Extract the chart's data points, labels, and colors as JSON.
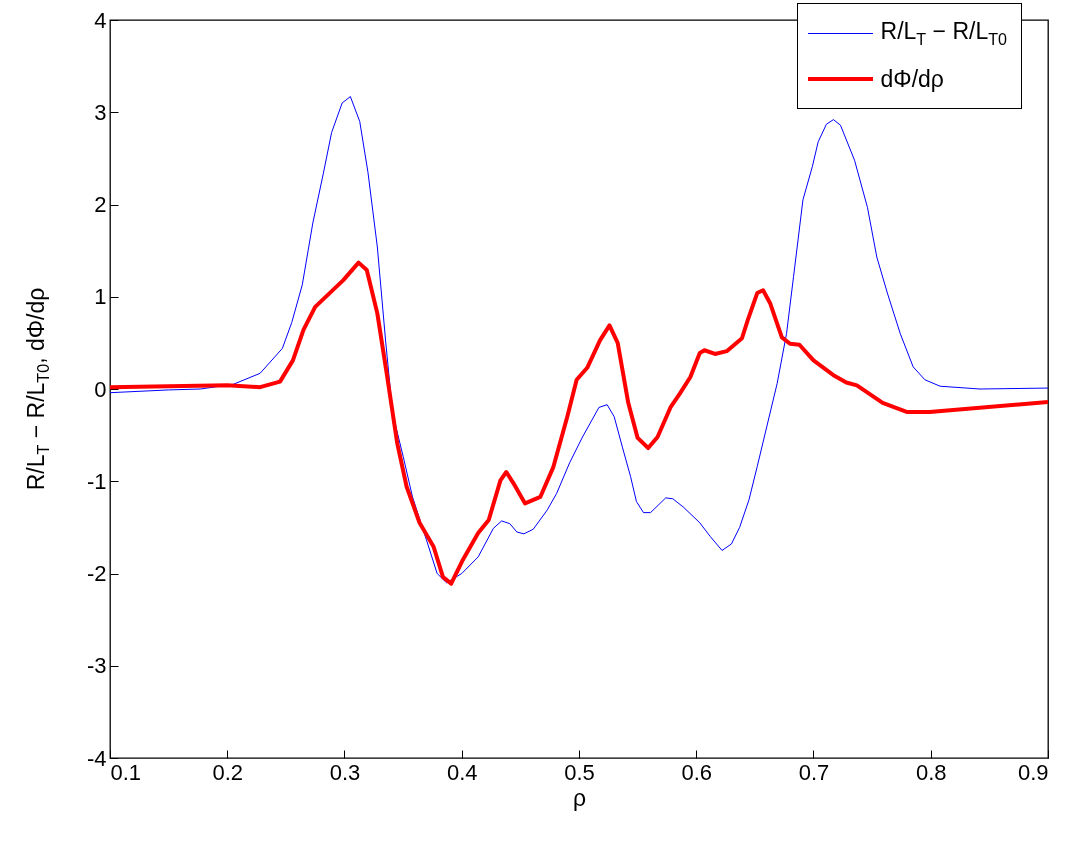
{
  "chart_data": {
    "type": "line",
    "xlabel": "ρ",
    "ylabel": "R/L$_{T}$ − R/L$_{T0}$, dΦ/dρ",
    "xlim": [
      0.1,
      0.9
    ],
    "ylim": [
      -4,
      4
    ],
    "xticks": [
      0.1,
      0.2,
      0.3,
      0.4,
      0.5,
      0.6,
      0.7,
      0.8,
      0.9
    ],
    "yticks": [
      -4,
      -3,
      -2,
      -1,
      0,
      1,
      2,
      3,
      4
    ],
    "grid": false,
    "legend": "top right",
    "marker": "none",
    "series": [
      {
        "name": "R/L$_{T}$ − R/L$_{T0}$",
        "color": "#0000ff",
        "line_style": "solid",
        "x": [
          0.1,
          0.15,
          0.177,
          0.205,
          0.228,
          0.247,
          0.255,
          0.264,
          0.273,
          0.282,
          0.289,
          0.298,
          0.305,
          0.313,
          0.32,
          0.328,
          0.335,
          0.341,
          0.35,
          0.358,
          0.37,
          0.379,
          0.387,
          0.4,
          0.414,
          0.427,
          0.434,
          0.441,
          0.447,
          0.453,
          0.461,
          0.473,
          0.481,
          0.492,
          0.503,
          0.517,
          0.524,
          0.53,
          0.537,
          0.544,
          0.549,
          0.555,
          0.561,
          0.574,
          0.58,
          0.589,
          0.603,
          0.612,
          0.622,
          0.63,
          0.637,
          0.645,
          0.652,
          0.669,
          0.677,
          0.683,
          0.691,
          0.699,
          0.704,
          0.711,
          0.717,
          0.723,
          0.735,
          0.746,
          0.754,
          0.763,
          0.774,
          0.785,
          0.795,
          0.808,
          0.842,
          0.9
        ],
        "values": [
          -0.04,
          -0.01,
          0.0,
          0.05,
          0.17,
          0.44,
          0.72,
          1.13,
          1.8,
          2.34,
          2.78,
          3.1,
          3.17,
          2.9,
          2.35,
          1.54,
          0.53,
          -0.26,
          -0.73,
          -1.17,
          -1.64,
          -2.0,
          -2.1,
          -2.0,
          -1.82,
          -1.51,
          -1.43,
          -1.46,
          -1.55,
          -1.57,
          -1.52,
          -1.31,
          -1.13,
          -0.8,
          -0.52,
          -0.2,
          -0.17,
          -0.3,
          -0.63,
          -0.95,
          -1.22,
          -1.34,
          -1.34,
          -1.18,
          -1.19,
          -1.28,
          -1.45,
          -1.6,
          -1.75,
          -1.68,
          -1.5,
          -1.2,
          -0.84,
          0.06,
          0.6,
          1.22,
          2.05,
          2.41,
          2.68,
          2.87,
          2.92,
          2.86,
          2.48,
          1.97,
          1.43,
          1.04,
          0.6,
          0.24,
          0.1,
          0.03,
          0.0,
          0.01
        ]
      },
      {
        "name": "dΦ/dρ",
        "color": "#ff0000",
        "line_style": "solid",
        "x": [
          0.1,
          0.2,
          0.228,
          0.245,
          0.256,
          0.265,
          0.275,
          0.299,
          0.312,
          0.319,
          0.328,
          0.336,
          0.345,
          0.353,
          0.364,
          0.376,
          0.384,
          0.391,
          0.401,
          0.414,
          0.423,
          0.433,
          0.438,
          0.444,
          0.454,
          0.467,
          0.478,
          0.49,
          0.498,
          0.507,
          0.518,
          0.526,
          0.533,
          0.542,
          0.55,
          0.559,
          0.567,
          0.578,
          0.586,
          0.595,
          0.603,
          0.607,
          0.616,
          0.626,
          0.639,
          0.644,
          0.652,
          0.657,
          0.663,
          0.673,
          0.68,
          0.688,
          0.7,
          0.717,
          0.728,
          0.737,
          0.759,
          0.78,
          0.799,
          0.9
        ],
        "values": [
          0.02,
          0.04,
          0.02,
          0.08,
          0.31,
          0.64,
          0.89,
          1.18,
          1.37,
          1.29,
          0.82,
          0.17,
          -0.59,
          -1.06,
          -1.45,
          -1.71,
          -2.04,
          -2.11,
          -1.85,
          -1.56,
          -1.42,
          -0.99,
          -0.9,
          -1.02,
          -1.24,
          -1.17,
          -0.85,
          -0.3,
          0.1,
          0.23,
          0.53,
          0.69,
          0.5,
          -0.15,
          -0.53,
          -0.64,
          -0.52,
          -0.2,
          -0.05,
          0.13,
          0.39,
          0.42,
          0.38,
          0.41,
          0.55,
          0.75,
          1.04,
          1.07,
          0.93,
          0.56,
          0.49,
          0.48,
          0.31,
          0.15,
          0.07,
          0.04,
          -0.15,
          -0.25,
          -0.25,
          -0.14
        ]
      }
    ]
  }
}
